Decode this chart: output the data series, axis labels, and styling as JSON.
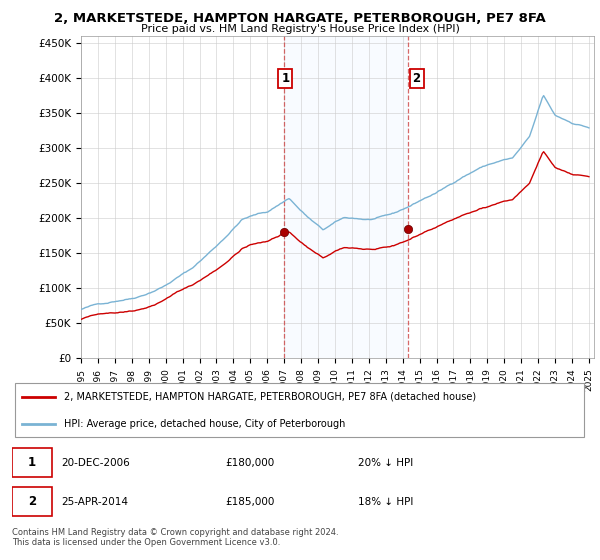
{
  "title": "2, MARKETSTEDE, HAMPTON HARGATE, PETERBOROUGH, PE7 8FA",
  "subtitle": "Price paid vs. HM Land Registry's House Price Index (HPI)",
  "ylim": [
    0,
    460000
  ],
  "yticks": [
    0,
    50000,
    100000,
    150000,
    200000,
    250000,
    300000,
    350000,
    400000,
    450000
  ],
  "ytick_labels": [
    "£0",
    "£50K",
    "£100K",
    "£150K",
    "£200K",
    "£250K",
    "£300K",
    "£350K",
    "£400K",
    "£450K"
  ],
  "hpi_color": "#7ab3d4",
  "sale_color": "#cc0000",
  "shade_color": "#ddeeff",
  "sale1_year": 2006.97,
  "sale1_price": 180000,
  "sale2_year": 2014.32,
  "sale2_price": 185000,
  "legend_sale_label": "2, MARKETSTEDE, HAMPTON HARGATE, PETERBOROUGH, PE7 8FA (detached house)",
  "legend_hpi_label": "HPI: Average price, detached house, City of Peterborough",
  "footer": "Contains HM Land Registry data © Crown copyright and database right 2024.\nThis data is licensed under the Open Government Licence v3.0."
}
